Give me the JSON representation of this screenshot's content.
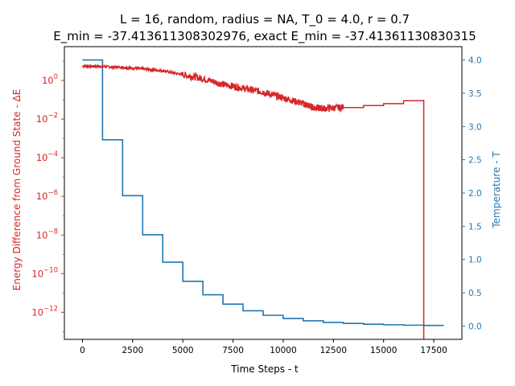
{
  "chart_data": {
    "type": "line",
    "title_line1": "L = 16, random, radius = NA, T_0 = 4.0, r = 0.7",
    "title_line2": "E_min = -37.413611308302976, exact E_min = -37.41361130830315",
    "xlabel": "Time Steps - t",
    "ylabel_left": "Energy Difference from Ground State - ΔE",
    "ylabel_right": "Temperature - T",
    "xlim": [
      -900,
      18900
    ],
    "ylim_left_log10": [
      -13.4,
      1.75
    ],
    "ylim_right": [
      -0.2,
      4.2
    ],
    "x_ticks": [
      0,
      2500,
      5000,
      7500,
      10000,
      12500,
      15000,
      17500
    ],
    "left_tick_exponents": [
      0,
      -2,
      -4,
      -6,
      -8,
      -10,
      -12
    ],
    "right_ticks": [
      0.0,
      0.5,
      1.0,
      1.5,
      2.0,
      2.5,
      3.0,
      3.5,
      4.0
    ],
    "left_color": "#d62728",
    "right_color": "#1f77b4",
    "series": [
      {
        "axis": "left",
        "color": "#d62728",
        "points": [
          [
            0,
            0.75
          ],
          [
            1000,
            0.72
          ],
          [
            2000,
            0.68
          ],
          [
            3000,
            0.6
          ],
          [
            4000,
            0.5
          ],
          [
            5000,
            0.3
          ],
          [
            6000,
            0.1
          ],
          [
            7000,
            -0.2
          ],
          [
            8000,
            -0.4
          ],
          [
            9000,
            -0.6
          ],
          [
            10000,
            -0.9
          ],
          [
            11000,
            -1.2
          ],
          [
            11500,
            -1.4
          ],
          [
            12000,
            -1.45
          ],
          [
            13000,
            -1.4
          ],
          [
            14000,
            -1.3
          ],
          [
            15000,
            -1.2
          ],
          [
            16000,
            -1.05
          ],
          [
            17000,
            -1.0
          ]
        ],
        "drop_at": 17000
      },
      {
        "axis": "right",
        "color": "#1f77b4",
        "steps": [
          [
            0,
            4.0
          ],
          [
            1000,
            2.8
          ],
          [
            2000,
            1.96
          ],
          [
            3000,
            1.372
          ],
          [
            4000,
            0.96
          ],
          [
            5000,
            0.672
          ],
          [
            6000,
            0.47
          ],
          [
            7000,
            0.329
          ],
          [
            8000,
            0.23
          ],
          [
            9000,
            0.161
          ],
          [
            10000,
            0.113
          ],
          [
            11000,
            0.079
          ],
          [
            12000,
            0.055
          ],
          [
            13000,
            0.039
          ],
          [
            14000,
            0.027
          ],
          [
            15000,
            0.019
          ],
          [
            16000,
            0.013
          ],
          [
            17000,
            0.009
          ]
        ],
        "x_end": 18000
      }
    ]
  }
}
